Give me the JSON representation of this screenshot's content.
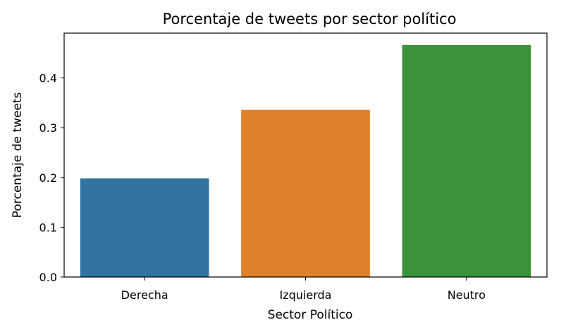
{
  "chart_data": {
    "type": "bar",
    "title": "Porcentaje de tweets por sector político",
    "xlabel": "Sector Político",
    "ylabel": "Porcentaje de tweets",
    "categories": [
      "Derecha",
      "Izquierda",
      "Neutro"
    ],
    "values": [
      0.198,
      0.336,
      0.466
    ],
    "colors": [
      "#3274a1",
      "#e1812c",
      "#3a923a"
    ],
    "ylim": [
      0,
      0.49
    ],
    "yticks": [
      0.0,
      0.1,
      0.2,
      0.3,
      0.4
    ],
    "ytick_labels": [
      "0.0",
      "0.1",
      "0.2",
      "0.3",
      "0.4"
    ],
    "grid": false,
    "legend": "none"
  }
}
